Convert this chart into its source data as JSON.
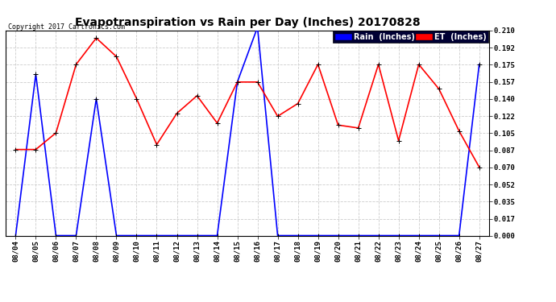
{
  "title": "Evapotranspiration vs Rain per Day (Inches) 20170828",
  "copyright": "Copyright 2017 Cartronics.com",
  "x_labels": [
    "08/04",
    "08/05",
    "08/06",
    "08/07",
    "08/08",
    "08/09",
    "08/10",
    "08/11",
    "08/12",
    "08/13",
    "08/14",
    "08/15",
    "08/16",
    "08/17",
    "08/18",
    "08/19",
    "08/20",
    "08/21",
    "08/22",
    "08/23",
    "08/24",
    "08/25",
    "08/26",
    "08/27"
  ],
  "rain_values": [
    0.0,
    0.165,
    0.0,
    0.0,
    0.14,
    0.0,
    0.0,
    0.0,
    0.0,
    0.0,
    0.0,
    0.157,
    0.213,
    0.0,
    0.0,
    0.0,
    0.0,
    0.0,
    0.0,
    0.0,
    0.0,
    0.0,
    0.0,
    0.175
  ],
  "et_values": [
    0.088,
    0.088,
    0.105,
    0.175,
    0.202,
    0.183,
    0.14,
    0.093,
    0.125,
    0.143,
    0.115,
    0.157,
    0.157,
    0.122,
    0.135,
    0.175,
    0.113,
    0.11,
    0.175,
    0.097,
    0.175,
    0.15,
    0.107,
    0.07
  ],
  "rain_color": "#0000ff",
  "et_color": "#ff0000",
  "bg_color": "#ffffff",
  "grid_color": "#cccccc",
  "yticks": [
    0.0,
    0.017,
    0.035,
    0.052,
    0.07,
    0.087,
    0.105,
    0.122,
    0.14,
    0.157,
    0.175,
    0.192,
    0.21
  ],
  "ylim_max": 0.21,
  "title_fontsize": 10,
  "tick_fontsize": 6.5,
  "copyright_fontsize": 6,
  "legend_fontsize": 7,
  "linewidth": 1.2,
  "marker_size": 4
}
